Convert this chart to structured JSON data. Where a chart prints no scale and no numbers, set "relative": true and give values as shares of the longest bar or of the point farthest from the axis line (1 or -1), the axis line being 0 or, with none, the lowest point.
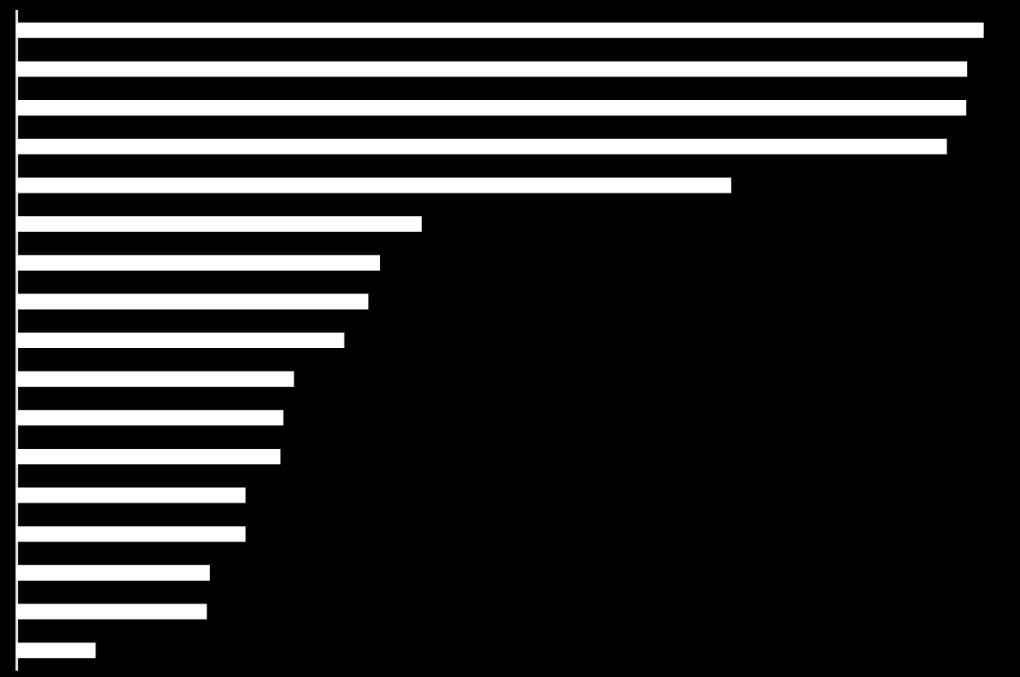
{
  "chart_data": {
    "type": "bar",
    "orientation": "horizontal",
    "relative": true,
    "categories": [
      null,
      null,
      null,
      null,
      null,
      null,
      null,
      null,
      null,
      null,
      null,
      null,
      null,
      null,
      null,
      null,
      null
    ],
    "values": [
      1,
      0.983,
      0.982,
      0.962,
      0.739,
      0.419,
      0.376,
      0.364,
      0.339,
      0.287,
      0.276,
      0.273,
      0.237,
      0.237,
      0.2,
      0.197,
      0.082
    ],
    "color": "#ffffff"
  }
}
